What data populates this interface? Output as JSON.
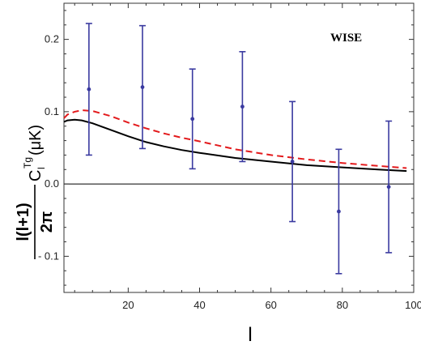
{
  "chart_data": {
    "type": "scatter",
    "annotation": "WISE",
    "xlabel": "l",
    "ylabel": {
      "fraction_numerator": "l(l+1)",
      "fraction_denominator": "2π",
      "symbol": "C",
      "subscript": "l",
      "superscript": "Tg",
      "unit": "(μK)"
    },
    "xlim": [
      2,
      100
    ],
    "ylim": [
      -0.15,
      0.25
    ],
    "xticks": [
      20,
      40,
      60,
      80,
      100
    ],
    "yticks": [
      -0.1,
      0.0,
      0.1,
      0.2
    ],
    "ytick_labels": [
      "- 0.1",
      "0.0",
      "0.1",
      "0.2"
    ],
    "grid": false,
    "zero_line": true,
    "colors": {
      "points": "#3a3aa0",
      "solid_curve": "#000000",
      "dashed_curve": "#e31a1c"
    },
    "series": [
      {
        "style": "points_with_errorbars",
        "x": [
          9,
          24,
          38,
          52,
          66,
          79,
          93
        ],
        "y": [
          0.131,
          0.134,
          0.09,
          0.107,
          0.031,
          -0.038,
          -0.004
        ],
        "yerr": [
          0.091,
          0.085,
          0.069,
          0.076,
          0.083,
          0.086,
          0.091
        ]
      },
      {
        "style": "solid",
        "x": [
          2,
          3,
          5,
          7,
          10,
          15,
          20,
          25,
          30,
          35,
          40,
          50,
          60,
          70,
          80,
          90,
          98
        ],
        "y": [
          0.086,
          0.088,
          0.089,
          0.088,
          0.084,
          0.075,
          0.066,
          0.058,
          0.052,
          0.047,
          0.043,
          0.036,
          0.031,
          0.026,
          0.023,
          0.02,
          0.018
        ]
      },
      {
        "style": "dashed",
        "x": [
          2,
          3,
          5,
          7,
          10,
          15,
          20,
          25,
          30,
          35,
          40,
          50,
          60,
          70,
          80,
          90,
          98
        ],
        "y": [
          0.091,
          0.096,
          0.1,
          0.102,
          0.101,
          0.094,
          0.085,
          0.077,
          0.07,
          0.064,
          0.059,
          0.048,
          0.04,
          0.034,
          0.029,
          0.025,
          0.022
        ]
      }
    ]
  }
}
